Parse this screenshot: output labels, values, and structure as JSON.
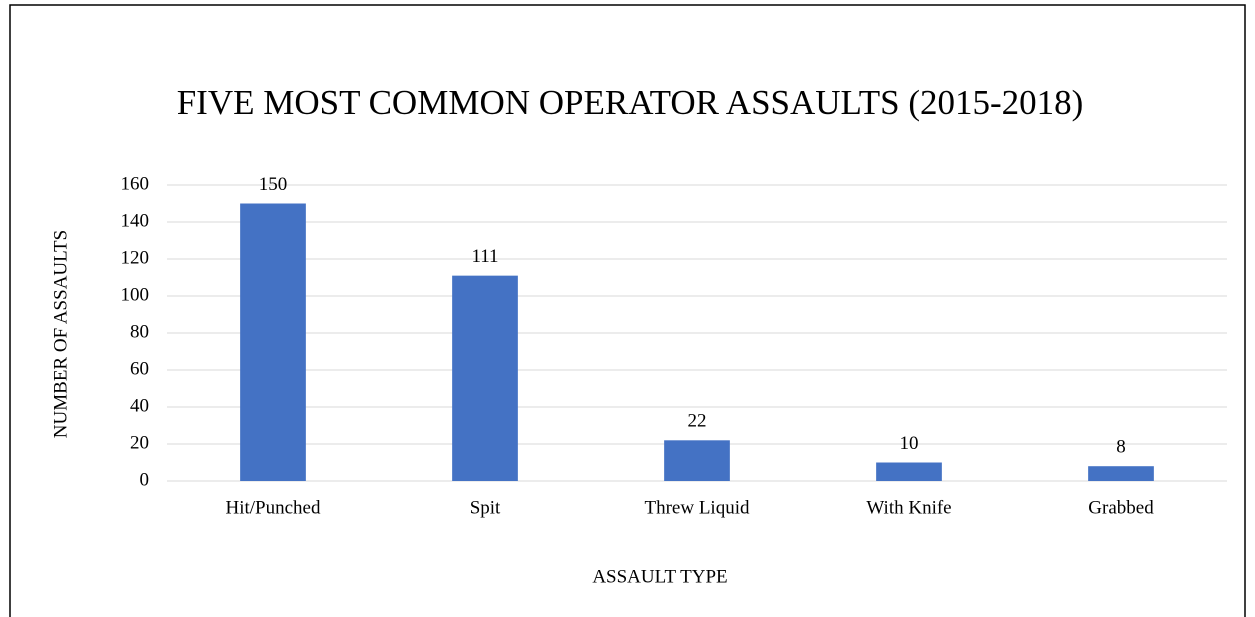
{
  "chart_data": {
    "type": "bar",
    "title": "FIVE MOST COMMON OPERATOR ASSAULTS (2015-2018)",
    "x_label": "ASSAULT TYPE",
    "y_label": "NUMBER OF ASSAULTS",
    "categories": [
      "Hit/Punched",
      "Spit",
      "Threw Liquid",
      "With Knife",
      "Grabbed"
    ],
    "values": [
      150,
      111,
      22,
      10,
      8
    ],
    "color": "#4472c4",
    "ylim": [
      0,
      160
    ],
    "yticks": [
      0,
      20,
      40,
      60,
      80,
      100,
      120,
      140,
      160
    ],
    "grid": true
  }
}
